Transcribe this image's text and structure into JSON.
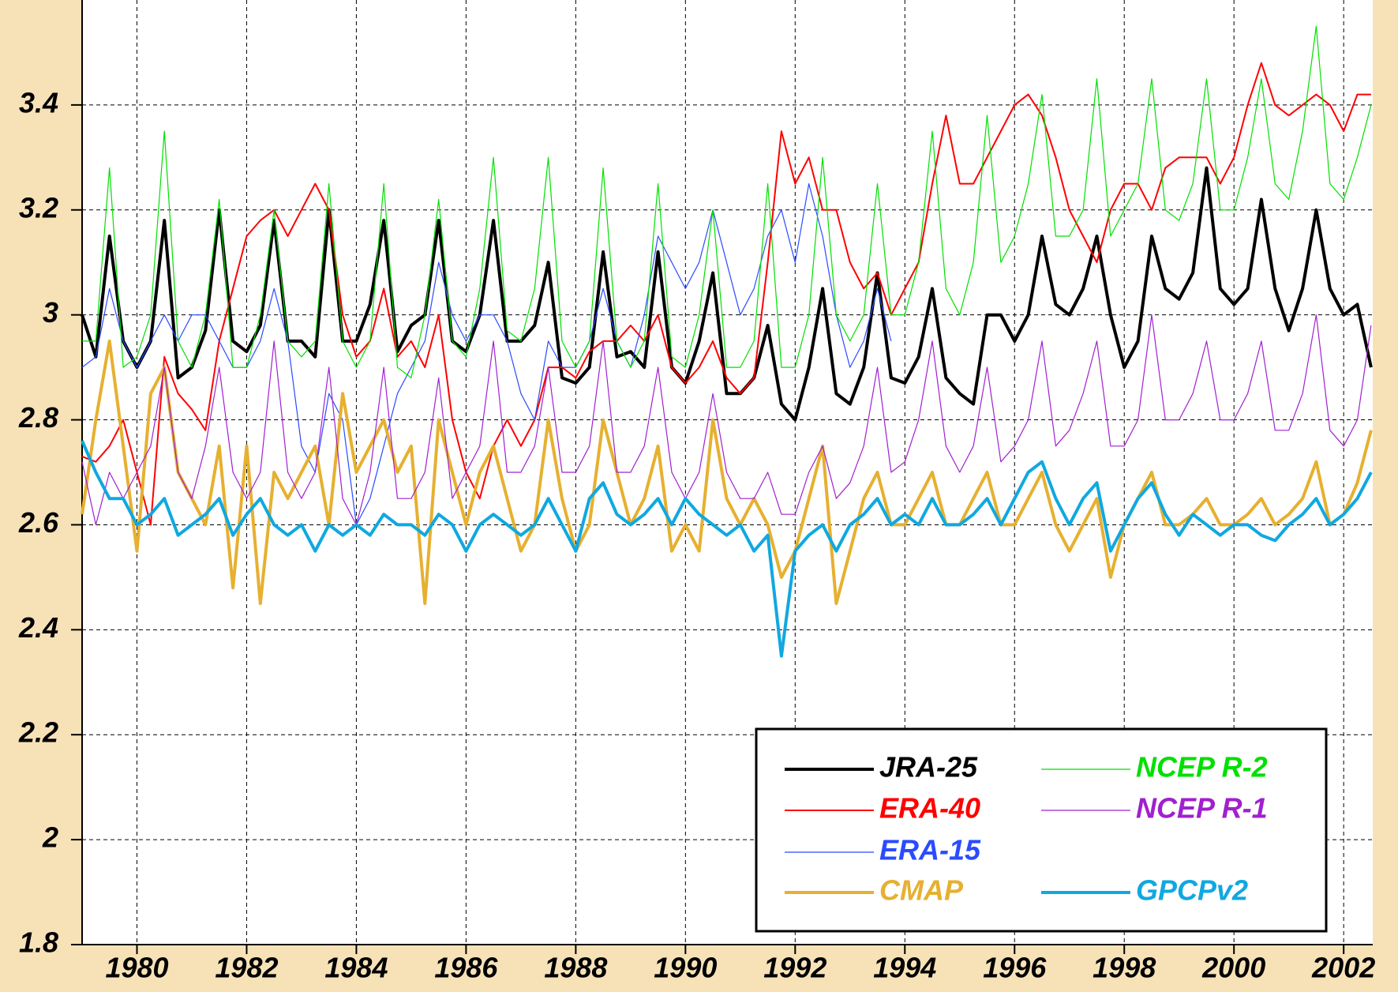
{
  "chart_data": {
    "type": "line",
    "x": [
      1979,
      1979.25,
      1979.5,
      1979.75,
      1980,
      1980.25,
      1980.5,
      1980.75,
      1981,
      1981.25,
      1981.5,
      1981.75,
      1982,
      1982.25,
      1982.5,
      1982.75,
      1983,
      1983.25,
      1983.5,
      1983.75,
      1984,
      1984.25,
      1984.5,
      1984.75,
      1985,
      1985.25,
      1985.5,
      1985.75,
      1986,
      1986.25,
      1986.5,
      1986.75,
      1987,
      1987.25,
      1987.5,
      1987.75,
      1988,
      1988.25,
      1988.5,
      1988.75,
      1989,
      1989.25,
      1989.5,
      1989.75,
      1990,
      1990.25,
      1990.5,
      1990.75,
      1991,
      1991.25,
      1991.5,
      1991.75,
      1992,
      1992.25,
      1992.5,
      1992.75,
      1993,
      1993.25,
      1993.5,
      1993.75,
      1994,
      1994.25,
      1994.5,
      1994.75,
      1995,
      1995.25,
      1995.5,
      1995.75,
      1996,
      1996.25,
      1996.5,
      1996.75,
      1997,
      1997.25,
      1997.5,
      1997.75,
      1998,
      1998.25,
      1998.5,
      1998.75,
      1999,
      1999.25,
      1999.5,
      1999.75,
      2000,
      2000.25,
      2000.5,
      2000.75,
      2001,
      2001.25,
      2001.5,
      2001.75,
      2002,
      2002.25,
      2002.5
    ],
    "series": [
      {
        "name": "JRA-25",
        "color": "#000000",
        "values": [
          3.0,
          2.92,
          3.15,
          2.95,
          2.9,
          2.95,
          3.18,
          2.88,
          2.9,
          2.97,
          3.2,
          2.95,
          2.93,
          2.98,
          3.18,
          2.95,
          2.95,
          2.92,
          3.2,
          2.95,
          2.95,
          3.02,
          3.18,
          2.93,
          2.98,
          3.0,
          3.18,
          2.95,
          2.93,
          3.0,
          3.18,
          2.95,
          2.95,
          2.98,
          3.1,
          2.88,
          2.87,
          2.9,
          3.12,
          2.92,
          2.93,
          2.9,
          3.12,
          2.9,
          2.87,
          2.95,
          3.08,
          2.85,
          2.85,
          2.88,
          2.98,
          2.83,
          2.8,
          2.9,
          3.05,
          2.85,
          2.83,
          2.9,
          3.08,
          2.88,
          2.87,
          2.92,
          3.05,
          2.88,
          2.85,
          2.83,
          3.0,
          3.0,
          2.95,
          3.0,
          3.15,
          3.02,
          3.0,
          3.05,
          3.15,
          3.0,
          2.9,
          2.95,
          3.15,
          3.05,
          3.03,
          3.08,
          3.28,
          3.05,
          3.02,
          3.05,
          3.22,
          3.05,
          2.97,
          3.05,
          3.2,
          3.05,
          3.0,
          3.02,
          2.9
        ]
      },
      {
        "name": "ERA-40",
        "color": "#ff0000",
        "values": [
          2.73,
          2.72,
          2.75,
          2.8,
          2.7,
          2.6,
          2.92,
          2.85,
          2.82,
          2.78,
          2.95,
          3.05,
          3.15,
          3.18,
          3.2,
          3.15,
          3.2,
          3.25,
          3.2,
          3.0,
          2.92,
          2.95,
          3.05,
          2.92,
          2.95,
          2.9,
          3.0,
          2.8,
          2.7,
          2.65,
          2.75,
          2.8,
          2.75,
          2.8,
          2.9,
          2.9,
          2.88,
          2.93,
          2.95,
          2.95,
          2.98,
          2.95,
          3.0,
          2.9,
          2.87,
          2.9,
          2.95,
          2.88,
          2.85,
          2.88,
          3.1,
          3.35,
          3.25,
          3.3,
          3.2,
          3.2,
          3.1,
          3.05,
          3.08,
          3.0,
          3.05,
          3.1,
          3.25,
          3.38,
          3.25,
          3.25,
          3.3,
          3.35,
          3.4,
          3.42,
          3.38,
          3.3,
          3.2,
          3.15,
          3.1,
          3.2,
          3.25,
          3.25,
          3.2,
          3.28,
          3.3,
          3.3,
          3.3,
          3.25,
          3.3,
          3.4,
          3.48,
          3.4,
          3.38,
          3.4,
          3.42,
          3.4,
          3.35,
          3.42,
          3.42
        ]
      },
      {
        "name": "ERA-15",
        "color": "#2a4bff",
        "values": [
          2.9,
          2.92,
          3.05,
          2.95,
          2.9,
          2.95,
          3.0,
          2.95,
          3.0,
          3.0,
          2.95,
          2.9,
          2.9,
          2.95,
          3.05,
          2.95,
          2.75,
          2.7,
          2.85,
          2.8,
          2.6,
          2.65,
          2.75,
          2.85,
          2.9,
          2.95,
          3.1,
          3.0,
          2.95,
          3.0,
          3.0,
          2.95,
          2.85,
          2.8,
          2.95,
          2.9,
          2.9,
          2.95,
          3.05,
          2.95,
          2.9,
          3.0,
          3.15,
          3.1,
          3.05,
          3.1,
          3.2,
          3.1,
          3.0,
          3.05,
          3.15,
          3.2,
          3.1,
          3.25,
          3.15,
          3.0,
          2.9,
          2.95,
          3.05,
          2.95,
          null,
          null,
          null,
          null,
          null,
          null,
          null,
          null,
          null,
          null,
          null,
          null,
          null,
          null,
          null,
          null,
          null,
          null,
          null,
          null,
          null,
          null,
          null,
          null,
          null,
          null,
          null,
          null,
          null,
          null,
          null,
          null,
          null,
          null,
          null
        ]
      },
      {
        "name": "CMAP",
        "color": "#e6b030",
        "values": [
          2.62,
          2.8,
          2.95,
          2.75,
          2.55,
          2.85,
          2.9,
          2.7,
          2.65,
          2.6,
          2.75,
          2.48,
          2.75,
          2.45,
          2.7,
          2.65,
          2.7,
          2.75,
          2.6,
          2.85,
          2.7,
          2.75,
          2.8,
          2.7,
          2.75,
          2.45,
          2.8,
          2.7,
          2.6,
          2.7,
          2.75,
          2.65,
          2.55,
          2.6,
          2.8,
          2.65,
          2.55,
          2.6,
          2.8,
          2.7,
          2.6,
          2.65,
          2.75,
          2.55,
          2.6,
          2.55,
          2.8,
          2.65,
          2.6,
          2.65,
          2.6,
          2.5,
          2.55,
          2.65,
          2.75,
          2.45,
          2.55,
          2.65,
          2.7,
          2.6,
          2.6,
          2.65,
          2.7,
          2.6,
          2.6,
          2.65,
          2.7,
          2.6,
          2.6,
          2.65,
          2.7,
          2.6,
          2.55,
          2.6,
          2.65,
          2.5,
          2.6,
          2.65,
          2.7,
          2.6,
          2.6,
          2.62,
          2.65,
          2.6,
          2.6,
          2.62,
          2.65,
          2.6,
          2.62,
          2.65,
          2.72,
          2.6,
          2.62,
          2.68,
          2.78
        ]
      },
      {
        "name": "NCEP R-2",
        "color": "#00e000",
        "values": [
          2.95,
          2.95,
          3.28,
          2.9,
          2.92,
          3.0,
          3.35,
          2.95,
          2.9,
          3.0,
          3.22,
          2.9,
          2.9,
          3.0,
          3.2,
          2.95,
          2.92,
          2.95,
          3.25,
          2.95,
          2.9,
          2.95,
          3.25,
          2.9,
          2.88,
          3.0,
          3.22,
          2.95,
          2.92,
          3.05,
          3.3,
          2.97,
          2.95,
          3.05,
          3.3,
          2.95,
          2.9,
          2.95,
          3.28,
          2.95,
          2.9,
          2.95,
          3.25,
          2.92,
          2.9,
          3.0,
          3.2,
          2.9,
          2.9,
          2.95,
          3.25,
          2.9,
          2.9,
          3.0,
          3.3,
          3.0,
          2.95,
          3.0,
          3.25,
          3.0,
          3.0,
          3.1,
          3.35,
          3.05,
          3.0,
          3.1,
          3.38,
          3.1,
          3.15,
          3.25,
          3.42,
          3.15,
          3.15,
          3.2,
          3.45,
          3.15,
          3.2,
          3.25,
          3.45,
          3.2,
          3.18,
          3.25,
          3.45,
          3.2,
          3.2,
          3.3,
          3.45,
          3.25,
          3.22,
          3.35,
          3.55,
          3.25,
          3.22,
          3.3,
          3.4
        ]
      },
      {
        "name": "NCEP R-1",
        "color": "#a020d0",
        "values": [
          2.72,
          2.6,
          2.7,
          2.65,
          2.7,
          2.75,
          2.9,
          2.7,
          2.65,
          2.75,
          2.9,
          2.7,
          2.65,
          2.7,
          2.95,
          2.7,
          2.65,
          2.7,
          2.9,
          2.65,
          2.6,
          2.7,
          2.9,
          2.65,
          2.65,
          2.7,
          2.88,
          2.65,
          2.7,
          2.75,
          2.95,
          2.7,
          2.7,
          2.75,
          2.9,
          2.7,
          2.7,
          2.75,
          2.95,
          2.7,
          2.7,
          2.75,
          2.9,
          2.7,
          2.65,
          2.7,
          2.85,
          2.7,
          2.65,
          2.65,
          2.7,
          2.62,
          2.62,
          2.7,
          2.75,
          2.65,
          2.68,
          2.75,
          2.9,
          2.7,
          2.72,
          2.8,
          2.95,
          2.75,
          2.7,
          2.75,
          2.9,
          2.72,
          2.75,
          2.8,
          2.95,
          2.75,
          2.78,
          2.85,
          2.95,
          2.75,
          2.75,
          2.8,
          3.0,
          2.8,
          2.8,
          2.85,
          2.95,
          2.8,
          2.8,
          2.85,
          2.95,
          2.78,
          2.78,
          2.85,
          3.0,
          2.78,
          2.75,
          2.8,
          2.98
        ]
      },
      {
        "name": "GPCPv2",
        "color": "#10a8e0",
        "values": [
          2.76,
          2.7,
          2.65,
          2.65,
          2.6,
          2.62,
          2.65,
          2.58,
          2.6,
          2.62,
          2.65,
          2.58,
          2.62,
          2.65,
          2.6,
          2.58,
          2.6,
          2.55,
          2.6,
          2.58,
          2.6,
          2.58,
          2.62,
          2.6,
          2.6,
          2.58,
          2.62,
          2.6,
          2.55,
          2.6,
          2.62,
          2.6,
          2.58,
          2.6,
          2.65,
          2.6,
          2.55,
          2.65,
          2.68,
          2.62,
          2.6,
          2.62,
          2.65,
          2.6,
          2.65,
          2.62,
          2.6,
          2.58,
          2.6,
          2.55,
          2.58,
          2.35,
          2.55,
          2.58,
          2.6,
          2.55,
          2.6,
          2.62,
          2.65,
          2.6,
          2.62,
          2.6,
          2.65,
          2.6,
          2.6,
          2.62,
          2.65,
          2.6,
          2.65,
          2.7,
          2.72,
          2.65,
          2.6,
          2.65,
          2.68,
          2.55,
          2.6,
          2.65,
          2.68,
          2.62,
          2.58,
          2.62,
          2.6,
          2.58,
          2.6,
          2.6,
          2.58,
          2.57,
          2.6,
          2.62,
          2.65,
          2.6,
          2.62,
          2.65,
          2.7
        ]
      }
    ],
    "xlim": [
      1979,
      2002.53
    ],
    "xticks": [
      1980,
      1982,
      1984,
      1986,
      1988,
      1990,
      1992,
      1994,
      1996,
      1998,
      2000,
      2002
    ],
    "ylim": [
      1.8,
      3.6
    ],
    "yticks": [
      1.8,
      2,
      2.2,
      2.4,
      2.6,
      2.8,
      3,
      3.2,
      3.4
    ],
    "grid": true,
    "legend": "lower right"
  }
}
